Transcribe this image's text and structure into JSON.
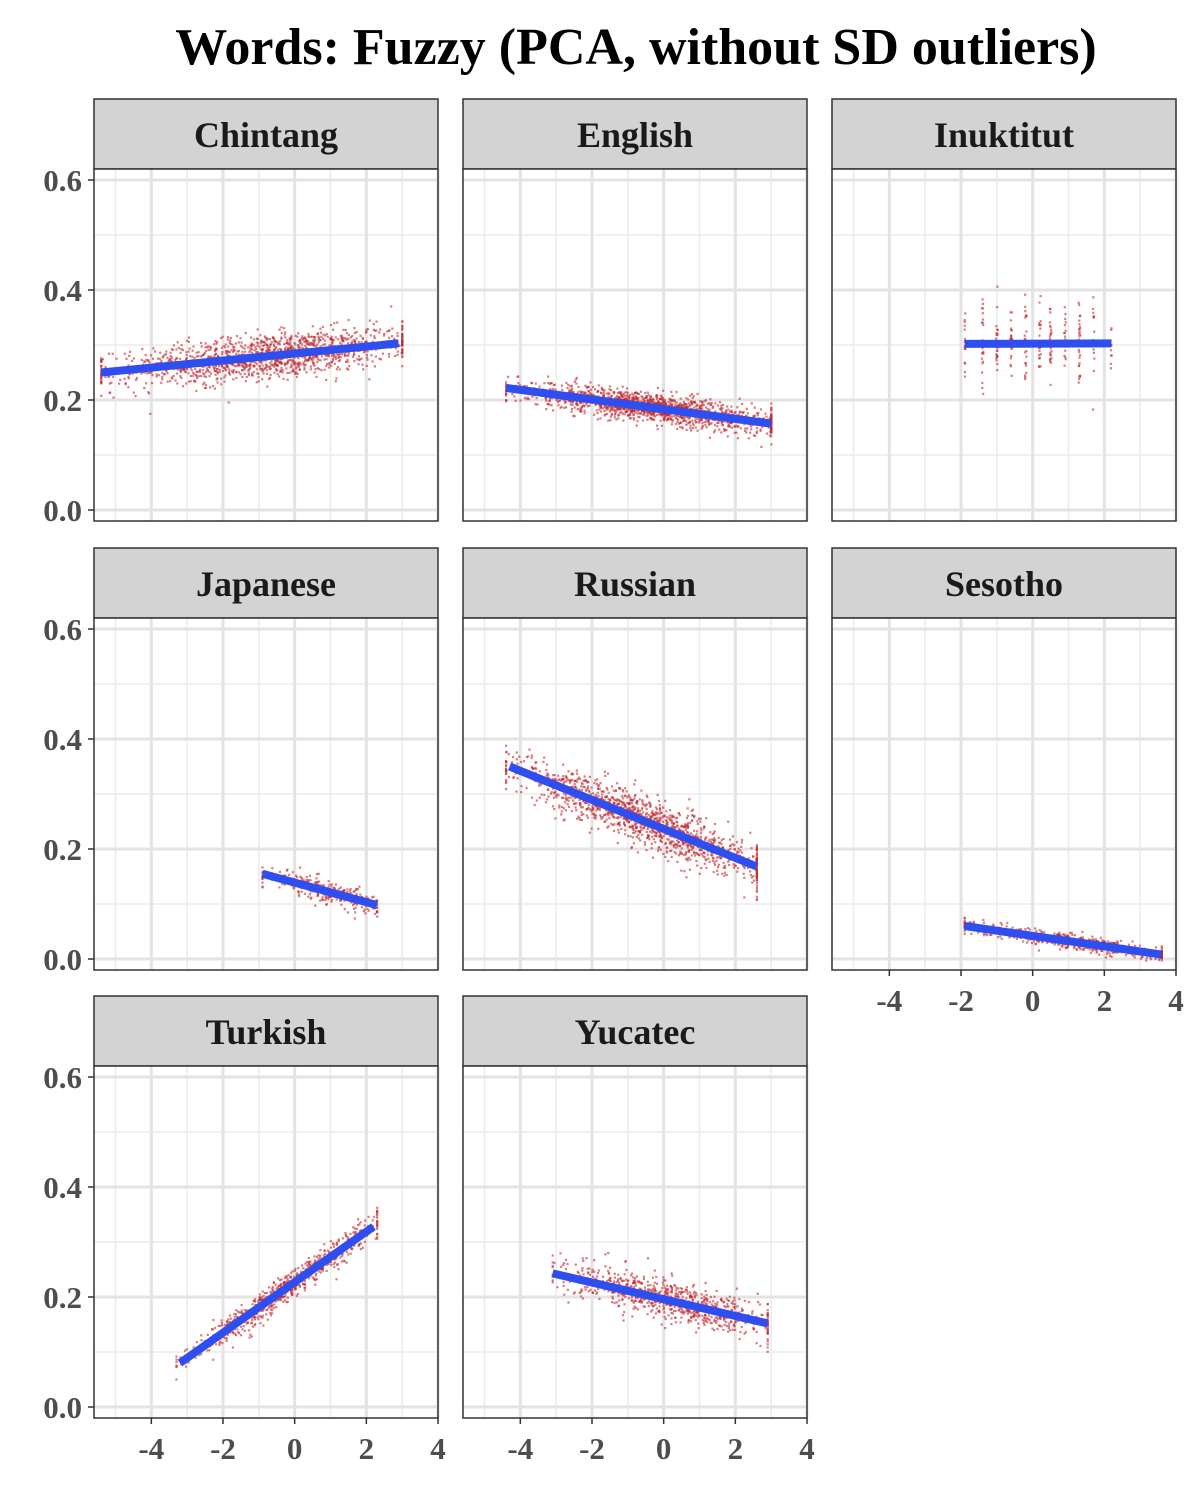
{
  "chart_data": {
    "type": "scatter",
    "title": "Words: Fuzzy (PCA, without SD outliers)",
    "xlabel": "",
    "ylabel": "",
    "xlim": [
      -5.6,
      4.0
    ],
    "ylim": [
      -0.02,
      0.62
    ],
    "x_ticks": [
      "-4",
      "-2",
      "0",
      "2",
      "4"
    ],
    "y_ticks": [
      "0.0",
      "0.2",
      "0.4",
      "0.6"
    ],
    "x_tick_values": [
      -4,
      -2,
      0,
      2,
      4
    ],
    "y_tick_values": [
      0.0,
      0.2,
      0.4,
      0.6
    ],
    "grid": true,
    "facet_layout": "3 columns, 3 rows, shared axes",
    "point_color": "#c0262d",
    "line_color": "#2e4ef0",
    "strip_fill": "#d3d3d3",
    "facets": [
      {
        "name": "Chintang",
        "fit_line": [
          [
            -5.4,
            0.25
          ],
          [
            2.9,
            0.303
          ]
        ],
        "cloud": {
          "x_range": [
            -5.4,
            3.0
          ],
          "y_sd": 0.02,
          "shape": "continuous",
          "density": 1400
        }
      },
      {
        "name": "English",
        "fit_line": [
          [
            -4.4,
            0.222
          ],
          [
            3.0,
            0.157
          ]
        ],
        "cloud": {
          "x_range": [
            -4.4,
            3.0
          ],
          "y_sd": 0.013,
          "shape": "continuous",
          "density": 1500
        }
      },
      {
        "name": "Inuktitut",
        "fit_line": [
          [
            -1.9,
            0.302
          ],
          [
            2.2,
            0.303
          ]
        ],
        "cloud": {
          "x_range": [
            -1.9,
            2.2
          ],
          "y_sd": 0.035,
          "shape": "discrete",
          "density": 260
        }
      },
      {
        "name": "Japanese",
        "fit_line": [
          [
            -0.9,
            0.155
          ],
          [
            2.3,
            0.098
          ]
        ],
        "cloud": {
          "x_range": [
            -0.9,
            2.3
          ],
          "y_sd": 0.01,
          "shape": "continuous",
          "density": 300
        }
      },
      {
        "name": "Russian",
        "fit_line": [
          [
            -4.3,
            0.35
          ],
          [
            2.6,
            0.168
          ]
        ],
        "cloud": {
          "x_range": [
            -4.4,
            2.6
          ],
          "y_sd": 0.022,
          "shape": "continuous",
          "density": 1300
        }
      },
      {
        "name": "Sesotho",
        "fit_line": [
          [
            -1.9,
            0.06
          ],
          [
            3.6,
            0.008
          ]
        ],
        "cloud": {
          "x_range": [
            -1.9,
            3.6
          ],
          "y_sd": 0.007,
          "shape": "continuous",
          "density": 600
        }
      },
      {
        "name": "Turkish",
        "fit_line": [
          [
            -3.2,
            0.08
          ],
          [
            2.2,
            0.328
          ]
        ],
        "cloud": {
          "x_range": [
            -3.3,
            2.3
          ],
          "y_sd": 0.014,
          "shape": "continuous",
          "density": 700
        }
      },
      {
        "name": "Yucatec",
        "fit_line": [
          [
            -3.1,
            0.243
          ],
          [
            2.9,
            0.152
          ]
        ],
        "cloud": {
          "x_range": [
            -3.1,
            2.9
          ],
          "y_sd": 0.018,
          "shape": "continuous",
          "density": 800
        }
      }
    ]
  }
}
